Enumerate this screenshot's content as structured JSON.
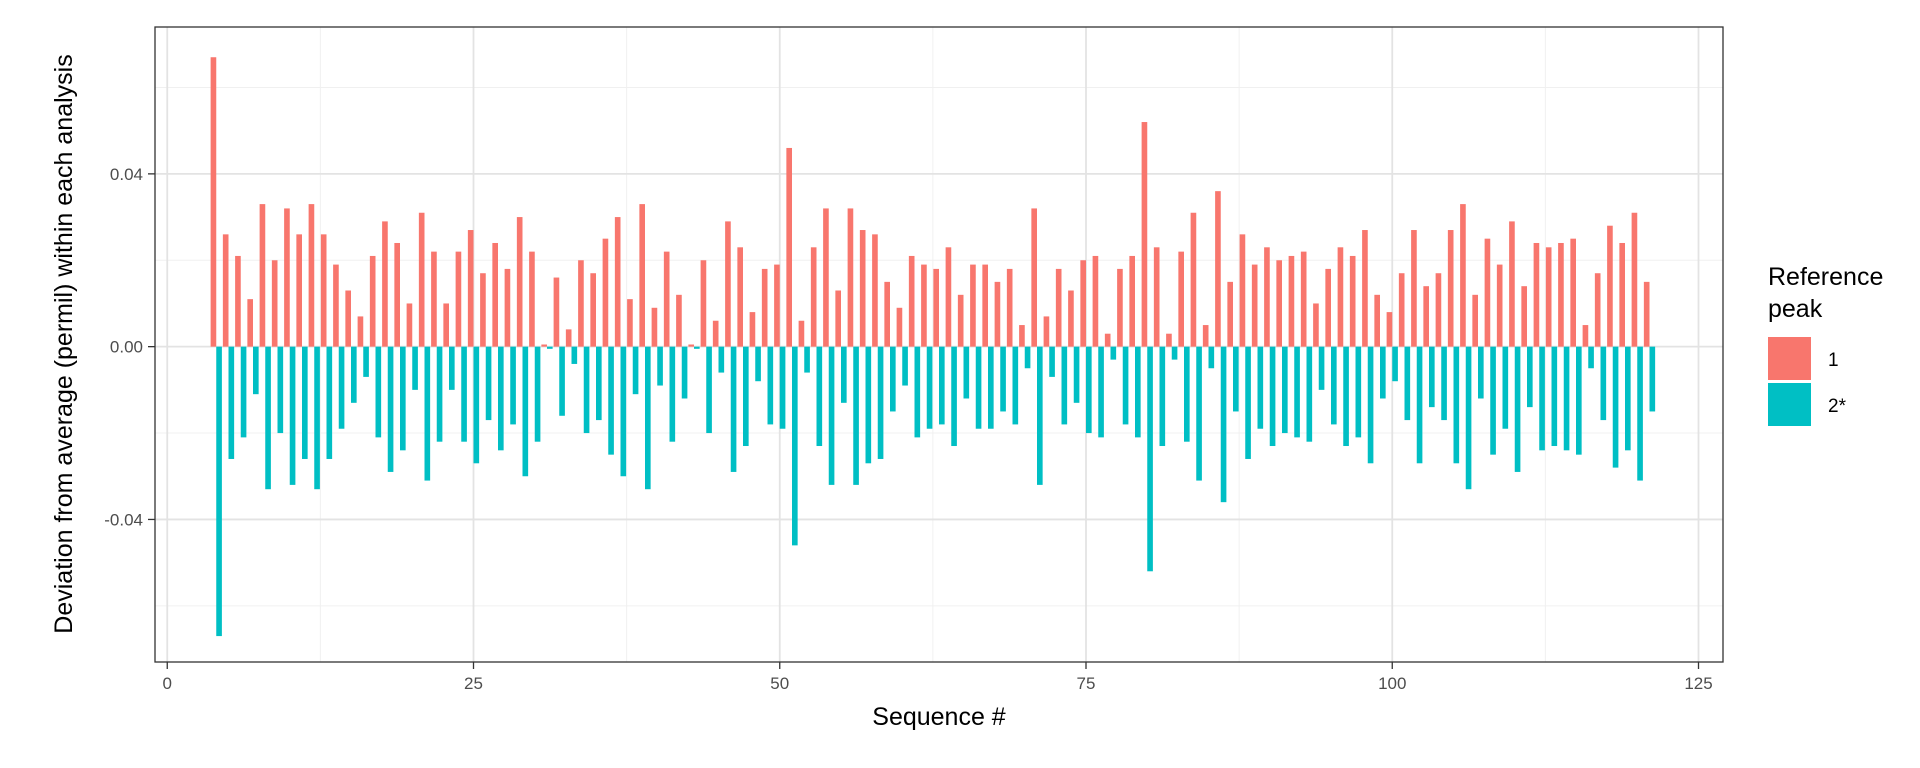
{
  "chart_data": {
    "type": "bar",
    "xlabel": "Sequence #",
    "ylabel": "Deviation from average (permil) within each analysis",
    "xlim": [
      -1,
      127
    ],
    "ylim": [
      -0.073,
      0.074
    ],
    "x_ticks": [
      0,
      25,
      50,
      75,
      100,
      125
    ],
    "x_tick_labels": [
      "0",
      "25",
      "50",
      "75",
      "100",
      "125"
    ],
    "y_ticks": [
      -0.04,
      0.0,
      0.04
    ],
    "y_tick_labels": [
      "-0.04",
      "0.00",
      "0.04"
    ],
    "grid": true,
    "legend": {
      "title_lines": [
        "Reference",
        "peak"
      ],
      "placement": "right"
    },
    "x": [
      4,
      5,
      6,
      7,
      8,
      9,
      10,
      11,
      12,
      13,
      14,
      15,
      16,
      17,
      18,
      19,
      20,
      21,
      22,
      23,
      24,
      25,
      26,
      27,
      28,
      29,
      30,
      31,
      32,
      33,
      34,
      35,
      36,
      37,
      38,
      39,
      40,
      41,
      42,
      43,
      44,
      45,
      46,
      47,
      48,
      49,
      50,
      51,
      52,
      53,
      54,
      55,
      56,
      57,
      58,
      59,
      60,
      61,
      62,
      63,
      64,
      65,
      66,
      67,
      68,
      69,
      70,
      71,
      72,
      73,
      74,
      75,
      76,
      77,
      78,
      79,
      80,
      81,
      82,
      83,
      84,
      85,
      86,
      87,
      88,
      89,
      90,
      91,
      92,
      93,
      94,
      95,
      96,
      97,
      98,
      99,
      100,
      101,
      102,
      103,
      104,
      105,
      106,
      107,
      108,
      109,
      110,
      111,
      112,
      113,
      114,
      115,
      116,
      117,
      118,
      119,
      120,
      121
    ],
    "series": [
      {
        "name": "1",
        "color": "#F8766D",
        "values": [
          0.067,
          0.026,
          0.021,
          0.011,
          0.033,
          0.02,
          0.032,
          0.026,
          0.033,
          0.026,
          0.019,
          0.013,
          0.007,
          0.021,
          0.029,
          0.024,
          0.01,
          0.031,
          0.022,
          0.01,
          0.022,
          0.027,
          0.017,
          0.024,
          0.018,
          0.03,
          0.022,
          0.0005,
          0.016,
          0.004,
          0.02,
          0.017,
          0.025,
          0.03,
          0.011,
          0.033,
          0.009,
          0.022,
          0.012,
          0.0005,
          0.02,
          0.006,
          0.029,
          0.023,
          0.008,
          0.018,
          0.019,
          0.046,
          0.006,
          0.023,
          0.032,
          0.013,
          0.032,
          0.027,
          0.026,
          0.015,
          0.009,
          0.021,
          0.019,
          0.018,
          0.023,
          0.012,
          0.019,
          0.019,
          0.015,
          0.018,
          0.005,
          0.032,
          0.007,
          0.018,
          0.013,
          0.02,
          0.021,
          0.003,
          0.018,
          0.021,
          0.052,
          0.023,
          0.003,
          0.022,
          0.031,
          0.005,
          0.036,
          0.015,
          0.026,
          0.019,
          0.023,
          0.02,
          0.021,
          0.022,
          0.01,
          0.018,
          0.023,
          0.021,
          0.027,
          0.012,
          0.008,
          0.017,
          0.027,
          0.014,
          0.017,
          0.027,
          0.033,
          0.012,
          0.025,
          0.019,
          0.029,
          0.014,
          0.024,
          0.023,
          0.024,
          0.025,
          0.005,
          0.017,
          0.028,
          0.024,
          0.031,
          0.015
        ]
      },
      {
        "name": "2*",
        "color": "#00BFC4",
        "values": [
          -0.067,
          -0.026,
          -0.021,
          -0.011,
          -0.033,
          -0.02,
          -0.032,
          -0.026,
          -0.033,
          -0.026,
          -0.019,
          -0.013,
          -0.007,
          -0.021,
          -0.029,
          -0.024,
          -0.01,
          -0.031,
          -0.022,
          -0.01,
          -0.022,
          -0.027,
          -0.017,
          -0.024,
          -0.018,
          -0.03,
          -0.022,
          -0.0005,
          -0.016,
          -0.004,
          -0.02,
          -0.017,
          -0.025,
          -0.03,
          -0.011,
          -0.033,
          -0.009,
          -0.022,
          -0.012,
          -0.0005,
          -0.02,
          -0.006,
          -0.029,
          -0.023,
          -0.008,
          -0.018,
          -0.019,
          -0.046,
          -0.006,
          -0.023,
          -0.032,
          -0.013,
          -0.032,
          -0.027,
          -0.026,
          -0.015,
          -0.009,
          -0.021,
          -0.019,
          -0.018,
          -0.023,
          -0.012,
          -0.019,
          -0.019,
          -0.015,
          -0.018,
          -0.005,
          -0.032,
          -0.007,
          -0.018,
          -0.013,
          -0.02,
          -0.021,
          -0.003,
          -0.018,
          -0.021,
          -0.052,
          -0.023,
          -0.003,
          -0.022,
          -0.031,
          -0.005,
          -0.036,
          -0.015,
          -0.026,
          -0.019,
          -0.023,
          -0.02,
          -0.021,
          -0.022,
          -0.01,
          -0.018,
          -0.023,
          -0.021,
          -0.027,
          -0.012,
          -0.008,
          -0.017,
          -0.027,
          -0.014,
          -0.017,
          -0.027,
          -0.033,
          -0.012,
          -0.025,
          -0.019,
          -0.029,
          -0.014,
          -0.024,
          -0.023,
          -0.024,
          -0.025,
          -0.005,
          -0.017,
          -0.028,
          -0.024,
          -0.031,
          -0.015
        ]
      }
    ]
  }
}
